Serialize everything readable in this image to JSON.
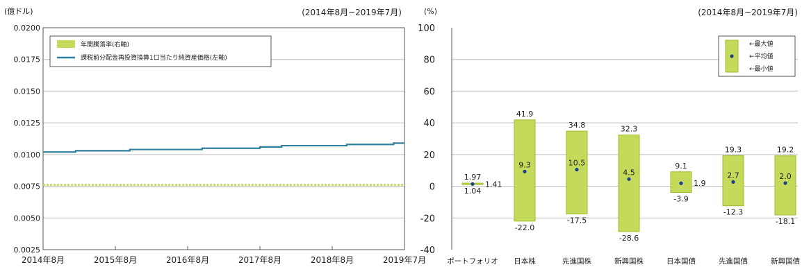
{
  "colors": {
    "nav_line": "#2f7f9f",
    "bar_fill": "#c3da5a",
    "bar_stroke": "#9cbd2b",
    "dot": "#1e3f8a",
    "grid": "#bdbdbd",
    "axis": "#555555"
  },
  "chart_data": [
    {
      "type": "line",
      "title": "(2014年8月~2019年7月)",
      "ylabel": "(億ドル)",
      "ylim": [
        0.0025,
        0.02
      ],
      "y_ticks": [
        "0.0200",
        "0.0175",
        "0.0150",
        "0.0125",
        "0.0100",
        "0.0075",
        "0.0050",
        "0.0025"
      ],
      "y_tick_values": [
        0.02,
        0.0175,
        0.015,
        0.0125,
        0.01,
        0.0075,
        0.005,
        0.0025
      ],
      "x_ticks": [
        "2014年8月",
        "2015年8月",
        "2016年8月",
        "2017年8月",
        "2018年8月",
        "2019年7月"
      ],
      "legend": {
        "placement": "top-left",
        "entries": [
          "年間騰落率(右軸)",
          "課税前分配金再投資換算1口当たり純資産価格(左軸)"
        ]
      },
      "series": [
        {
          "name": "課税前分配金再投資換算1口当たり純資産価格(左軸)",
          "x": [
            0,
            0.05,
            0.09,
            0.2,
            0.24,
            0.31,
            0.44,
            0.47,
            0.6,
            0.66,
            0.8,
            0.84,
            0.95,
            0.97,
            1.0
          ],
          "values": [
            0.0102,
            0.0102,
            0.0103,
            0.0103,
            0.0104,
            0.0104,
            0.0105,
            0.0105,
            0.0106,
            0.0107,
            0.0107,
            0.0108,
            0.0108,
            0.0109,
            0.0109
          ]
        },
        {
          "name": "年間騰落率(右軸)",
          "values": [
            0.0076
          ]
        }
      ]
    },
    {
      "type": "bar",
      "title": "(2014年8月~2019年7月)",
      "ylabel": "(%)",
      "ylim": [
        -40,
        100
      ],
      "y_ticks": [
        "100",
        "80",
        "60",
        "40",
        "20",
        "0",
        "-20",
        "-40"
      ],
      "y_tick_values": [
        100,
        80,
        60,
        40,
        20,
        0,
        -20,
        -40
      ],
      "categories": [
        "ポートフォリオ",
        "日本株",
        "先進国株",
        "新興国株",
        "日本国債",
        "先進国債",
        "新興国債"
      ],
      "legend": {
        "placement": "top-right",
        "entries": [
          "←最大値",
          "←平均値",
          "←最小値"
        ]
      },
      "series": [
        {
          "name": "最大値",
          "values": [
            1.97,
            41.9,
            34.8,
            32.3,
            9.1,
            19.3,
            19.2
          ]
        },
        {
          "name": "平均値",
          "values": [
            1.41,
            9.3,
            10.5,
            4.5,
            1.9,
            2.7,
            2.0
          ]
        },
        {
          "name": "最小値",
          "values": [
            1.04,
            -22.0,
            -17.5,
            -28.6,
            -3.9,
            -12.3,
            -18.1
          ]
        }
      ],
      "value_labels": {
        "max": [
          "1.97",
          "41.9",
          "34.8",
          "32.3",
          "9.1",
          "19.3",
          "19.2"
        ],
        "avg": [
          "1.41",
          "9.3",
          "10.5",
          "4.5",
          "1.9",
          "2.7",
          "2.0"
        ],
        "min": [
          "1.04",
          "-22.0",
          "-17.5",
          "-28.6",
          "-3.9",
          "-12.3",
          "-18.1"
        ]
      }
    }
  ]
}
